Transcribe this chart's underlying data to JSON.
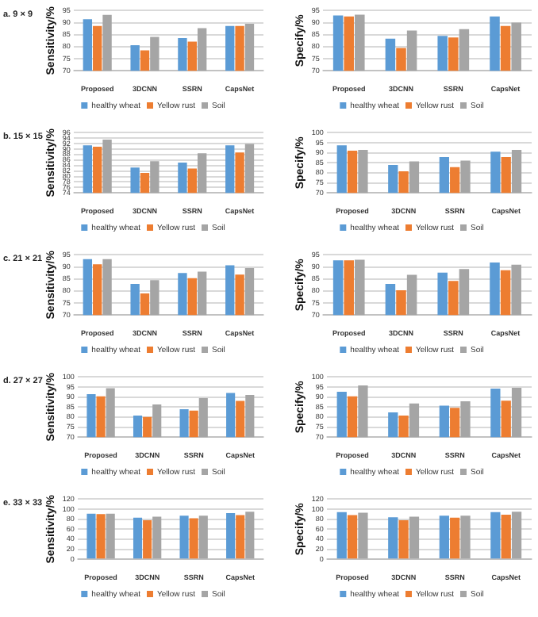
{
  "chart_data": [
    {
      "type": "bar",
      "title": "a. 9 × 9",
      "ylabel": "Sensitivity/%",
      "categories": [
        "Proposed",
        "3DCNN",
        "SSRN",
        "CapsNet"
      ],
      "ylim": [
        70,
        95
      ],
      "yticks": [
        70,
        75,
        80,
        85,
        90,
        95
      ],
      "grid": "y",
      "legend": "bottom",
      "series": [
        {
          "name": "healthy wheat",
          "color": "#5b9bd5",
          "values": [
            91.4,
            80.6,
            83.6,
            88.6
          ]
        },
        {
          "name": "Yellow rust",
          "color": "#ed7d31",
          "values": [
            88.6,
            78.5,
            82.1,
            88.6
          ]
        },
        {
          "name": "Soil",
          "color": "#a5a5a5",
          "values": [
            93.2,
            84.1,
            87.7,
            89.5
          ]
        }
      ]
    },
    {
      "type": "bar",
      "ylabel": "Specify/%",
      "categories": [
        "Proposed",
        "3DCNN",
        "SSRN",
        "CapsNet"
      ],
      "ylim": [
        70,
        95
      ],
      "yticks": [
        70,
        75,
        80,
        85,
        90,
        95
      ],
      "grid": "y",
      "legend": "bottom",
      "series": [
        {
          "name": "healthy wheat",
          "color": "#5b9bd5",
          "values": [
            93.0,
            83.3,
            84.5,
            92.6
          ]
        },
        {
          "name": "Yellow rust",
          "color": "#ed7d31",
          "values": [
            92.6,
            79.5,
            83.8,
            88.6
          ]
        },
        {
          "name": "Soil",
          "color": "#a5a5a5",
          "values": [
            93.3,
            86.7,
            87.3,
            90.0
          ]
        }
      ]
    },
    {
      "type": "bar",
      "title": "b. 15 × 15",
      "ylabel": "Sensitivity/%",
      "categories": [
        "Proposed",
        "3DCNN",
        "SSRN",
        "CapsNet"
      ],
      "ylim": [
        74,
        96
      ],
      "yticks": [
        74,
        76,
        78,
        80,
        82,
        84,
        86,
        88,
        90,
        92,
        94,
        96
      ],
      "grid": "y",
      "legend": "bottom",
      "series": [
        {
          "name": "healthy wheat",
          "color": "#5b9bd5",
          "values": [
            91.4,
            83.3,
            85.1,
            91.4
          ]
        },
        {
          "name": "Yellow rust",
          "color": "#ed7d31",
          "values": [
            90.9,
            81.3,
            82.9,
            88.8
          ]
        },
        {
          "name": "Soil",
          "color": "#a5a5a5",
          "values": [
            93.5,
            85.6,
            88.5,
            91.9
          ]
        }
      ]
    },
    {
      "type": "bar",
      "ylabel": "Specify/%",
      "categories": [
        "Proposed",
        "3DCNN",
        "SSRN",
        "CapsNet"
      ],
      "ylim": [
        70,
        100
      ],
      "yticks": [
        70,
        75,
        80,
        85,
        90,
        95,
        100
      ],
      "grid": "y",
      "legend": "bottom",
      "series": [
        {
          "name": "healthy wheat",
          "color": "#5b9bd5",
          "values": [
            93.7,
            83.9,
            87.9,
            90.6
          ]
        },
        {
          "name": "Yellow rust",
          "color": "#ed7d31",
          "values": [
            91.1,
            80.8,
            82.8,
            87.9
          ]
        },
        {
          "name": "Soil",
          "color": "#a5a5a5",
          "values": [
            91.5,
            85.7,
            86.1,
            91.5
          ]
        }
      ]
    },
    {
      "type": "bar",
      "title": "c. 21 × 21",
      "ylabel": "Sensitivity/%",
      "categories": [
        "Proposed",
        "3DCNN",
        "SSRN",
        "CapsNet"
      ],
      "ylim": [
        70,
        95
      ],
      "yticks": [
        70,
        75,
        80,
        85,
        90,
        95
      ],
      "grid": "y",
      "legend": "bottom",
      "series": [
        {
          "name": "healthy wheat",
          "color": "#5b9bd5",
          "values": [
            93.2,
            82.9,
            87.5,
            90.7
          ]
        },
        {
          "name": "Yellow rust",
          "color": "#ed7d31",
          "values": [
            91.1,
            79.0,
            85.3,
            86.8
          ]
        },
        {
          "name": "Soil",
          "color": "#a5a5a5",
          "values": [
            93.2,
            84.5,
            88.0,
            89.5
          ]
        }
      ]
    },
    {
      "type": "bar",
      "ylabel": "Specify/%",
      "categories": [
        "Proposed",
        "3DCNN",
        "SSRN",
        "CapsNet"
      ],
      "ylim": [
        70,
        95
      ],
      "yticks": [
        70,
        75,
        80,
        85,
        90,
        95
      ],
      "grid": "y",
      "legend": "bottom",
      "series": [
        {
          "name": "healthy wheat",
          "color": "#5b9bd5",
          "values": [
            92.7,
            82.9,
            87.6,
            91.8
          ]
        },
        {
          "name": "Yellow rust",
          "color": "#ed7d31",
          "values": [
            92.7,
            80.3,
            84.2,
            88.6
          ]
        },
        {
          "name": "Soil",
          "color": "#a5a5a5",
          "values": [
            93.0,
            86.7,
            89.1,
            90.9
          ]
        }
      ]
    },
    {
      "type": "bar",
      "title": "d. 27 × 27",
      "ylabel": "Sensitivity/%",
      "categories": [
        "Proposed",
        "3DCNN",
        "SSRN",
        "CapsNet"
      ],
      "ylim": [
        70,
        100
      ],
      "yticks": [
        70,
        75,
        80,
        85,
        90,
        95,
        100
      ],
      "grid": "y",
      "legend": "bottom",
      "series": [
        {
          "name": "healthy wheat",
          "color": "#5b9bd5",
          "values": [
            91.5,
            80.8,
            83.9,
            92.0
          ]
        },
        {
          "name": "Yellow rust",
          "color": "#ed7d31",
          "values": [
            90.4,
            80.1,
            83.2,
            88.1
          ]
        },
        {
          "name": "Soil",
          "color": "#a5a5a5",
          "values": [
            94.4,
            86.3,
            89.5,
            91.1
          ]
        }
      ]
    },
    {
      "type": "bar",
      "ylabel": "Specify/%",
      "categories": [
        "Proposed",
        "3DCNN",
        "SSRN",
        "CapsNet"
      ],
      "ylim": [
        70,
        100
      ],
      "yticks": [
        70,
        75,
        80,
        85,
        90,
        95,
        100
      ],
      "grid": "y",
      "legend": "bottom",
      "series": [
        {
          "name": "healthy wheat",
          "color": "#5b9bd5",
          "values": [
            92.6,
            82.3,
            85.7,
            94.2
          ]
        },
        {
          "name": "Yellow rust",
          "color": "#ed7d31",
          "values": [
            90.4,
            80.8,
            84.6,
            88.2
          ]
        },
        {
          "name": "Soil",
          "color": "#a5a5a5",
          "values": [
            95.8,
            86.8,
            87.9,
            94.6
          ]
        }
      ]
    },
    {
      "type": "bar",
      "title": "e. 33 × 33",
      "ylabel": "Sensitivity/%",
      "categories": [
        "Proposed",
        "3DCNN",
        "SSRN",
        "CapsNet"
      ],
      "ylim": [
        0,
        120
      ],
      "yticks": [
        0,
        20,
        40,
        60,
        80,
        100,
        120
      ],
      "grid": "y",
      "legend": "bottom",
      "series": [
        {
          "name": "healthy wheat",
          "color": "#5b9bd5",
          "values": [
            91,
            83,
            87,
            92
          ]
        },
        {
          "name": "Yellow rust",
          "color": "#ed7d31",
          "values": [
            90,
            78,
            82,
            88
          ]
        },
        {
          "name": "Soil",
          "color": "#a5a5a5",
          "values": [
            91,
            85,
            87,
            95
          ]
        }
      ]
    },
    {
      "type": "bar",
      "ylabel": "Specify/%",
      "categories": [
        "Proposed",
        "3DCNN",
        "SSRN",
        "CapsNet"
      ],
      "ylim": [
        0,
        120
      ],
      "yticks": [
        0,
        20,
        40,
        60,
        80,
        100,
        120
      ],
      "grid": "y",
      "legend": "bottom",
      "series": [
        {
          "name": "healthy wheat",
          "color": "#5b9bd5",
          "values": [
            94,
            84,
            87,
            94
          ]
        },
        {
          "name": "Yellow rust",
          "color": "#ed7d31",
          "values": [
            88,
            78,
            83,
            89
          ]
        },
        {
          "name": "Soil",
          "color": "#a5a5a5",
          "values": [
            93,
            85,
            87,
            95
          ]
        }
      ]
    }
  ]
}
